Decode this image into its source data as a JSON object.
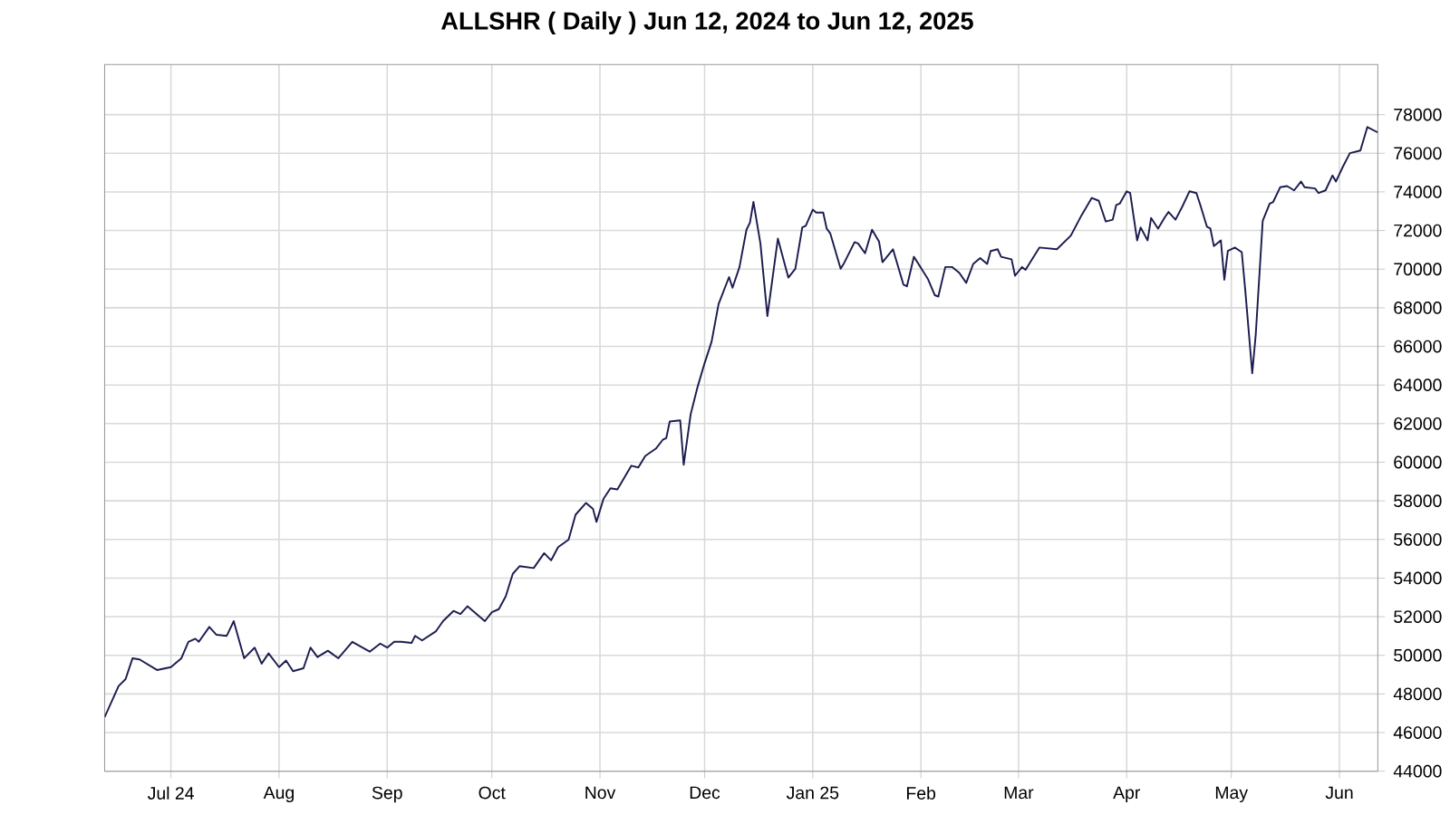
{
  "chart_data": {
    "type": "line",
    "title": "ALLSHR ( Daily ) Jun 12, 2024 to Jun 12, 2025",
    "color": "#1c1c50",
    "grid": true,
    "marker": "none",
    "line_style": "solid",
    "xlim": [
      "2024-06-12",
      "2025-06-12"
    ],
    "xticks": [
      {
        "value": "2024-07-01",
        "label": "Jul 24"
      },
      {
        "value": "2024-08-01",
        "label": "Aug"
      },
      {
        "value": "2024-09-01",
        "label": "Sep"
      },
      {
        "value": "2024-10-01",
        "label": "Oct"
      },
      {
        "value": "2024-11-01",
        "label": "Nov"
      },
      {
        "value": "2024-12-01",
        "label": "Dec"
      },
      {
        "value": "2025-01-01",
        "label": "Jan 25"
      },
      {
        "value": "2025-02-01",
        "label": "Feb"
      },
      {
        "value": "2025-03-01",
        "label": "Mar"
      },
      {
        "value": "2025-04-01",
        "label": "Apr"
      },
      {
        "value": "2025-05-01",
        "label": "May"
      },
      {
        "value": "2025-06-01",
        "label": "Jun"
      }
    ],
    "ylim": [
      44000,
      80600
    ],
    "yticks": [
      44000,
      46000,
      48000,
      50000,
      52000,
      54000,
      56000,
      58000,
      60000,
      62000,
      64000,
      66000,
      68000,
      70000,
      72000,
      74000,
      76000,
      78000
    ],
    "x": [
      "2024-06-12",
      "2024-06-16",
      "2024-06-18",
      "2024-06-20",
      "2024-06-22",
      "2024-06-27",
      "2024-07-01",
      "2024-07-04",
      "2024-07-06",
      "2024-07-08",
      "2024-07-09",
      "2024-07-12",
      "2024-07-14",
      "2024-07-17",
      "2024-07-19",
      "2024-07-22",
      "2024-07-25",
      "2024-07-27",
      "2024-07-29",
      "2024-08-01",
      "2024-08-03",
      "2024-08-05",
      "2024-08-08",
      "2024-08-10",
      "2024-08-12",
      "2024-08-15",
      "2024-08-18",
      "2024-08-22",
      "2024-08-27",
      "2024-08-30",
      "2024-09-01",
      "2024-09-03",
      "2024-09-05",
      "2024-09-08",
      "2024-09-09",
      "2024-09-11",
      "2024-09-15",
      "2024-09-17",
      "2024-09-20",
      "2024-09-22",
      "2024-09-24",
      "2024-09-29",
      "2024-10-01",
      "2024-10-03",
      "2024-10-05",
      "2024-10-07",
      "2024-10-09",
      "2024-10-13",
      "2024-10-16",
      "2024-10-18",
      "2024-10-20",
      "2024-10-23",
      "2024-10-25",
      "2024-10-28",
      "2024-10-30",
      "2024-10-31",
      "2024-11-02",
      "2024-11-04",
      "2024-11-06",
      "2024-11-10",
      "2024-11-12",
      "2024-11-14",
      "2024-11-17",
      "2024-11-19",
      "2024-11-20",
      "2024-11-21",
      "2024-11-24",
      "2024-11-25",
      "2024-11-27",
      "2024-11-29",
      "2024-12-01",
      "2024-12-03",
      "2024-12-05",
      "2024-12-08",
      "2024-12-09",
      "2024-12-11",
      "2024-12-13",
      "2024-12-14",
      "2024-12-15",
      "2024-12-17",
      "2024-12-19",
      "2024-12-22",
      "2024-12-25",
      "2024-12-27",
      "2024-12-29",
      "2024-12-30",
      "2025-01-01",
      "2025-01-02",
      "2025-01-04",
      "2025-01-05",
      "2025-01-06",
      "2025-01-09",
      "2025-01-10",
      "2025-01-13",
      "2025-01-14",
      "2025-01-16",
      "2025-01-18",
      "2025-01-20",
      "2025-01-21",
      "2025-01-24",
      "2025-01-27",
      "2025-01-28",
      "2025-01-30",
      "2025-02-03",
      "2025-02-05",
      "2025-02-06",
      "2025-02-08",
      "2025-02-10",
      "2025-02-12",
      "2025-02-14",
      "2025-02-16",
      "2025-02-18",
      "2025-02-20",
      "2025-02-21",
      "2025-02-23",
      "2025-02-24",
      "2025-02-27",
      "2025-02-28",
      "2025-03-02",
      "2025-03-03",
      "2025-03-07",
      "2025-03-12",
      "2025-03-16",
      "2025-03-19",
      "2025-03-22",
      "2025-03-24",
      "2025-03-26",
      "2025-03-28",
      "2025-03-29",
      "2025-03-30",
      "2025-04-01",
      "2025-04-02",
      "2025-04-04",
      "2025-04-05",
      "2025-04-07",
      "2025-04-08",
      "2025-04-10",
      "2025-04-12",
      "2025-04-13",
      "2025-04-15",
      "2025-04-17",
      "2025-04-19",
      "2025-04-21",
      "2025-04-22",
      "2025-04-24",
      "2025-04-25",
      "2025-04-26",
      "2025-04-28",
      "2025-04-29",
      "2025-04-30",
      "2025-05-02",
      "2025-05-04",
      "2025-05-05",
      "2025-05-07",
      "2025-05-08",
      "2025-05-10",
      "2025-05-12",
      "2025-05-13",
      "2025-05-15",
      "2025-05-17",
      "2025-05-19",
      "2025-05-21",
      "2025-05-22",
      "2025-05-25",
      "2025-05-26",
      "2025-05-28",
      "2025-05-30",
      "2025-05-31",
      "2025-06-02",
      "2025-06-04",
      "2025-06-07",
      "2025-06-09",
      "2025-06-12"
    ],
    "values": [
      46800,
      48410,
      48770,
      49850,
      49790,
      49240,
      49390,
      49850,
      50700,
      50860,
      50700,
      51470,
      51070,
      51010,
      51770,
      49850,
      50400,
      49570,
      50100,
      49390,
      49730,
      49180,
      49330,
      50400,
      49910,
      50240,
      49850,
      50700,
      50190,
      50610,
      50400,
      50700,
      50700,
      50640,
      51010,
      50770,
      51250,
      51770,
      52300,
      52140,
      52540,
      51770,
      52230,
      52390,
      53060,
      54220,
      54620,
      54520,
      55290,
      54920,
      55600,
      55990,
      57280,
      57890,
      57580,
      56910,
      58100,
      58650,
      58590,
      59820,
      59730,
      60330,
      60700,
      61160,
      61250,
      62110,
      62170,
      59870,
      62480,
      63910,
      65130,
      66240,
      68190,
      69590,
      69040,
      70110,
      72040,
      72410,
      73480,
      71330,
      67570,
      71580,
      69560,
      70020,
      72160,
      72250,
      73080,
      72930,
      72930,
      72100,
      71860,
      70020,
      70320,
      71400,
      71330,
      70820,
      72040,
      71430,
      70360,
      71030,
      69200,
      69110,
      70640,
      69500,
      68650,
      68580,
      70110,
      70110,
      69810,
      69290,
      70270,
      70570,
      70270,
      70940,
      71030,
      70640,
      70510,
      69660,
      70110,
      69960,
      71120,
      71030,
      71740,
      72770,
      73690,
      73540,
      72470,
      72560,
      73320,
      73390,
      74030,
      73940,
      71490,
      72160,
      71490,
      72650,
      72100,
      72710,
      72960,
      72560,
      73260,
      74030,
      73940,
      73390,
      72200,
      72100,
      71190,
      71490,
      69450,
      70940,
      71120,
      70880,
      68900,
      64610,
      66600,
      72500,
      73390,
      73480,
      74240,
      74300,
      74080,
      74540,
      74240,
      74180,
      73940,
      74080,
      74850,
      74540,
      75310,
      76010,
      76140,
      77360,
      77080
    ]
  }
}
